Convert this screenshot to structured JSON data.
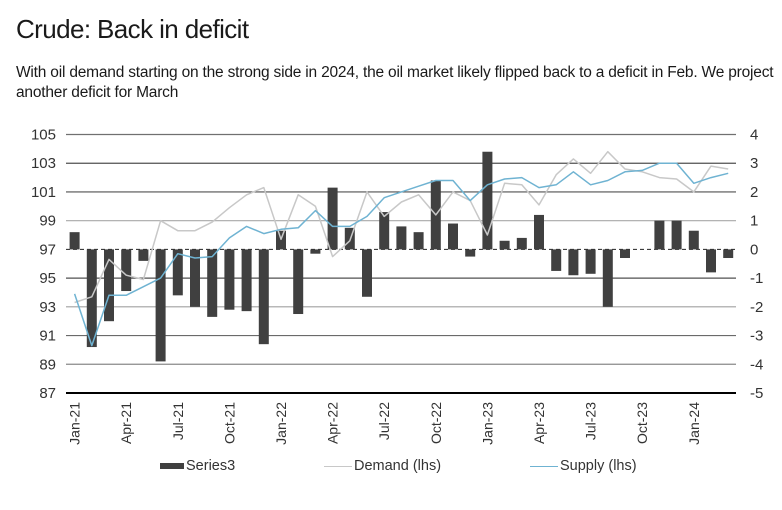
{
  "header": {
    "title": "Crude: Back in deficit",
    "subtitle": "With oil demand starting on the strong side in 2024, the oil market likely flipped back to a deficit in Feb. We project another deficit for March"
  },
  "colors": {
    "bars": "#404040",
    "demand": "#c8c8c8",
    "supply": "#6fb3d2",
    "grid": "#6b6b6b",
    "axis": "#000000"
  },
  "chart_data": {
    "type": "bar+line",
    "title": "Crude: Back in deficit",
    "xlabel": "",
    "ylabel_left": "",
    "ylabel_right": "",
    "x": [
      "Jan-21",
      "Feb-21",
      "Mar-21",
      "Apr-21",
      "May-21",
      "Jun-21",
      "Jul-21",
      "Aug-21",
      "Sep-21",
      "Oct-21",
      "Nov-21",
      "Dec-21",
      "Jan-22",
      "Feb-22",
      "Mar-22",
      "Apr-22",
      "May-22",
      "Jun-22",
      "Jul-22",
      "Aug-22",
      "Sep-22",
      "Oct-22",
      "Nov-22",
      "Dec-22",
      "Jan-23",
      "Feb-23",
      "Mar-23",
      "Apr-23",
      "May-23",
      "Jun-23",
      "Jul-23",
      "Aug-23",
      "Sep-23",
      "Oct-23",
      "Nov-23",
      "Dec-23",
      "Jan-24",
      "Feb-24",
      "Mar-24"
    ],
    "x_tick_labels": [
      "Jan-21",
      "Apr-21",
      "Jul-21",
      "Oct-21",
      "Jan-22",
      "Apr-22",
      "Jul-22",
      "Oct-22",
      "Jan-23",
      "Apr-23",
      "Jul-23",
      "Oct-23",
      "Jan-24"
    ],
    "ylim_left": [
      87,
      105
    ],
    "yticks_left": [
      "105",
      "103",
      "101",
      "99",
      "97",
      "95",
      "93",
      "91",
      "89",
      "87"
    ],
    "ylim_right": [
      -5,
      4
    ],
    "yticks_right": [
      "4",
      "3",
      "2",
      "1",
      "0",
      "-1",
      "-2",
      "-3",
      "-4",
      "-5"
    ],
    "grid": true,
    "legend_position": "bottom",
    "series": [
      {
        "name": "Series3",
        "type": "bar",
        "axis": "right",
        "values": [
          0.6,
          -3.4,
          -2.5,
          -1.45,
          -0.4,
          -3.9,
          -1.6,
          -2.0,
          -2.35,
          -2.1,
          -2.15,
          -3.3,
          0.65,
          -2.25,
          -0.15,
          2.15,
          0.75,
          -1.65,
          1.3,
          0.8,
          0.6,
          2.4,
          0.9,
          -0.25,
          3.4,
          0.3,
          0.4,
          1.2,
          -0.75,
          -0.9,
          -0.85,
          -2.0,
          -0.3,
          0,
          1.0,
          1.0,
          0.65,
          -0.8,
          -0.3
        ]
      },
      {
        "name": "Demand (lhs)",
        "type": "line",
        "axis": "left",
        "values": [
          93.3,
          93.7,
          96.3,
          95.2,
          94.9,
          99.0,
          98.3,
          98.3,
          98.9,
          99.9,
          100.8,
          101.3,
          97.7,
          100.8,
          100.0,
          96.5,
          97.6,
          101.0,
          99.3,
          100.3,
          100.8,
          99.4,
          101.0,
          100.4,
          98.0,
          101.6,
          101.5,
          100.1,
          102.2,
          103.3,
          102.3,
          103.8,
          102.6,
          102.4,
          102.0,
          101.9,
          101.0,
          102.8,
          102.6
        ]
      },
      {
        "name": "Supply (lhs)",
        "type": "line",
        "axis": "left",
        "values": [
          93.9,
          90.3,
          93.8,
          93.8,
          94.4,
          95.0,
          96.7,
          96.4,
          96.5,
          97.8,
          98.6,
          98.1,
          98.4,
          98.5,
          99.7,
          98.6,
          98.6,
          99.3,
          100.6,
          101.0,
          101.4,
          101.8,
          101.8,
          100.4,
          101.5,
          101.9,
          102.0,
          101.3,
          101.5,
          102.4,
          101.5,
          101.8,
          102.4,
          102.5,
          103.0,
          103.0,
          101.6,
          102.0,
          102.3
        ]
      }
    ]
  },
  "legend": {
    "items": [
      {
        "label": "Series3"
      },
      {
        "label": "Demand (lhs)"
      },
      {
        "label": "Supply (lhs)"
      }
    ]
  }
}
